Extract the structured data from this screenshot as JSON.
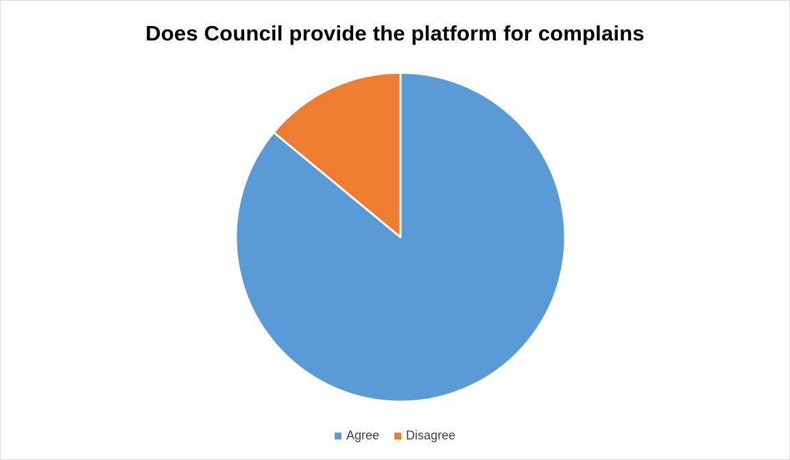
{
  "chart_data": {
    "type": "pie",
    "title": "Does Council provide the platform for complains",
    "categories": [
      "Agree",
      "Disagree"
    ],
    "values": [
      86,
      14
    ],
    "colors": [
      "#5b9bd5",
      "#ed7d31"
    ],
    "start_angle_deg": 0,
    "direction": "clockwise",
    "legend_position": "bottom"
  },
  "legend": {
    "items": [
      {
        "label": "Agree",
        "color": "#5b9bd5"
      },
      {
        "label": "Disagree",
        "color": "#ed7d31"
      }
    ]
  }
}
